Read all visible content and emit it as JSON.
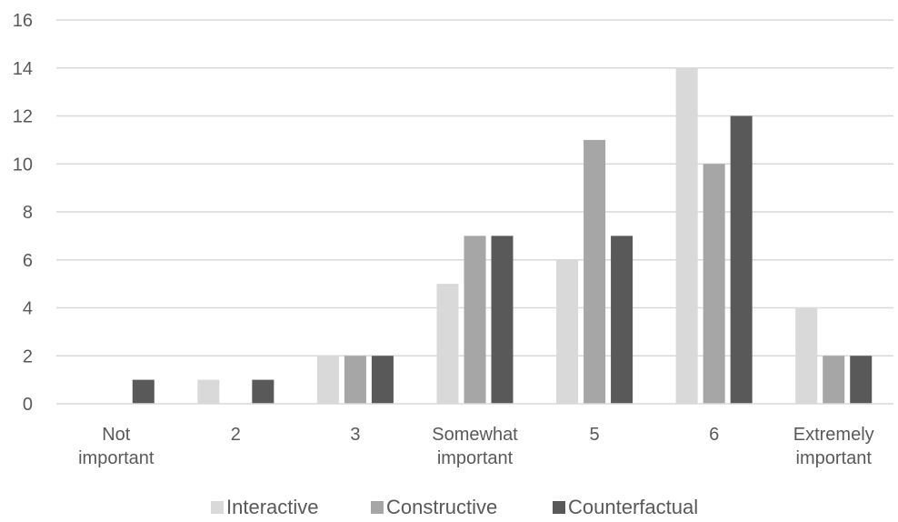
{
  "chart_data": {
    "type": "bar",
    "categories": [
      [
        "Not",
        "important"
      ],
      [
        "2"
      ],
      [
        "3"
      ],
      [
        "Somewhat",
        "important"
      ],
      [
        "5"
      ],
      [
        "6"
      ],
      [
        "Extremely",
        "important"
      ]
    ],
    "series": [
      {
        "name": "Interactive",
        "color": "#d9d9d9",
        "values": [
          0,
          1,
          2,
          5,
          6,
          14,
          4
        ]
      },
      {
        "name": "Constructive",
        "color": "#a6a6a6",
        "values": [
          0,
          0,
          2,
          7,
          11,
          10,
          2
        ]
      },
      {
        "name": "Counterfactual",
        "color": "#595959",
        "values": [
          1,
          1,
          2,
          7,
          7,
          12,
          2
        ]
      }
    ],
    "ylim": [
      0,
      16
    ],
    "yticks": [
      "0",
      "2",
      "4",
      "6",
      "8",
      "10",
      "12",
      "14",
      "16"
    ],
    "grid": true,
    "legend_position": "bottom",
    "title": "",
    "xlabel": "",
    "ylabel": ""
  }
}
